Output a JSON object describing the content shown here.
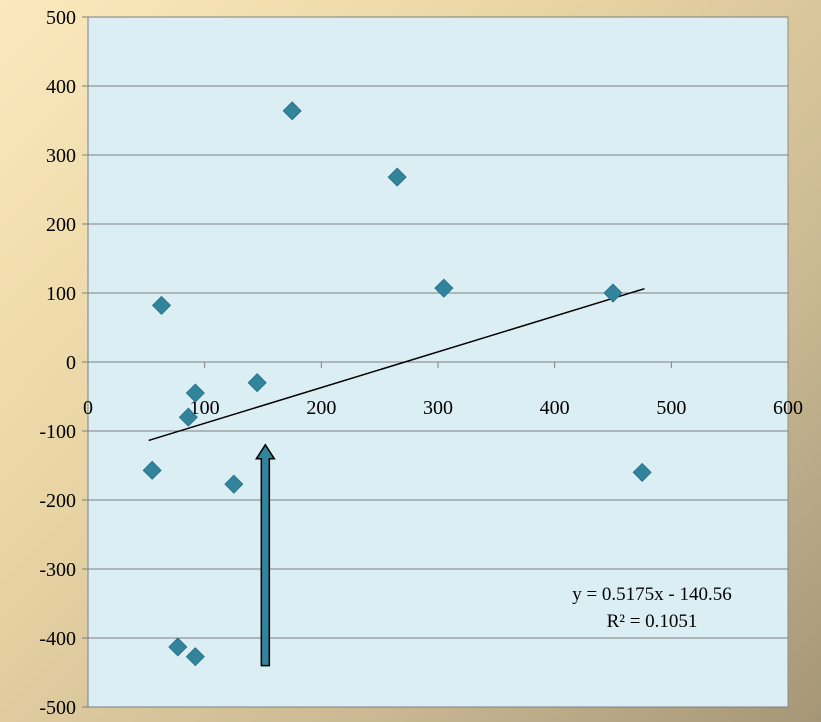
{
  "chart_data": {
    "type": "scatter",
    "title": "",
    "xlabel": "",
    "ylabel": "",
    "xlim": [
      0,
      600
    ],
    "ylim": [
      -500,
      500
    ],
    "x_ticks": [
      0,
      100,
      200,
      300,
      400,
      500,
      600
    ],
    "y_ticks": [
      500,
      400,
      300,
      200,
      100,
      0,
      -100,
      -200,
      -300,
      -400,
      -500
    ],
    "grid": "horizontal",
    "legend": "none",
    "series": [
      {
        "marker": "diamond",
        "color": "#31849b",
        "points": [
          {
            "x": 55,
            "y": -157
          },
          {
            "x": 63,
            "y": 82
          },
          {
            "x": 77,
            "y": -413
          },
          {
            "x": 86,
            "y": -80
          },
          {
            "x": 92,
            "y": -45
          },
          {
            "x": 92,
            "y": -427
          },
          {
            "x": 125,
            "y": -177
          },
          {
            "x": 145,
            "y": -30
          },
          {
            "x": 175,
            "y": 364
          },
          {
            "x": 265,
            "y": 268
          },
          {
            "x": 305,
            "y": 107
          },
          {
            "x": 450,
            "y": 100
          },
          {
            "x": 475,
            "y": -160
          }
        ]
      }
    ],
    "trendline": {
      "x_start": 52,
      "x_end": 477,
      "slope": 0.5175,
      "intercept": -140.56,
      "color": "#000000"
    },
    "trendline_equation": "y = 0.5175x - 140.56",
    "trendline_r2": "R² = 0.1051",
    "arrow_annotation": {
      "x": 140,
      "y_from": -440,
      "y_to": -120,
      "fill_color": "#31849b",
      "outline_color": "#000000"
    },
    "plot_background": "#dbeef4",
    "gridline_color": "#7f7f7f"
  }
}
